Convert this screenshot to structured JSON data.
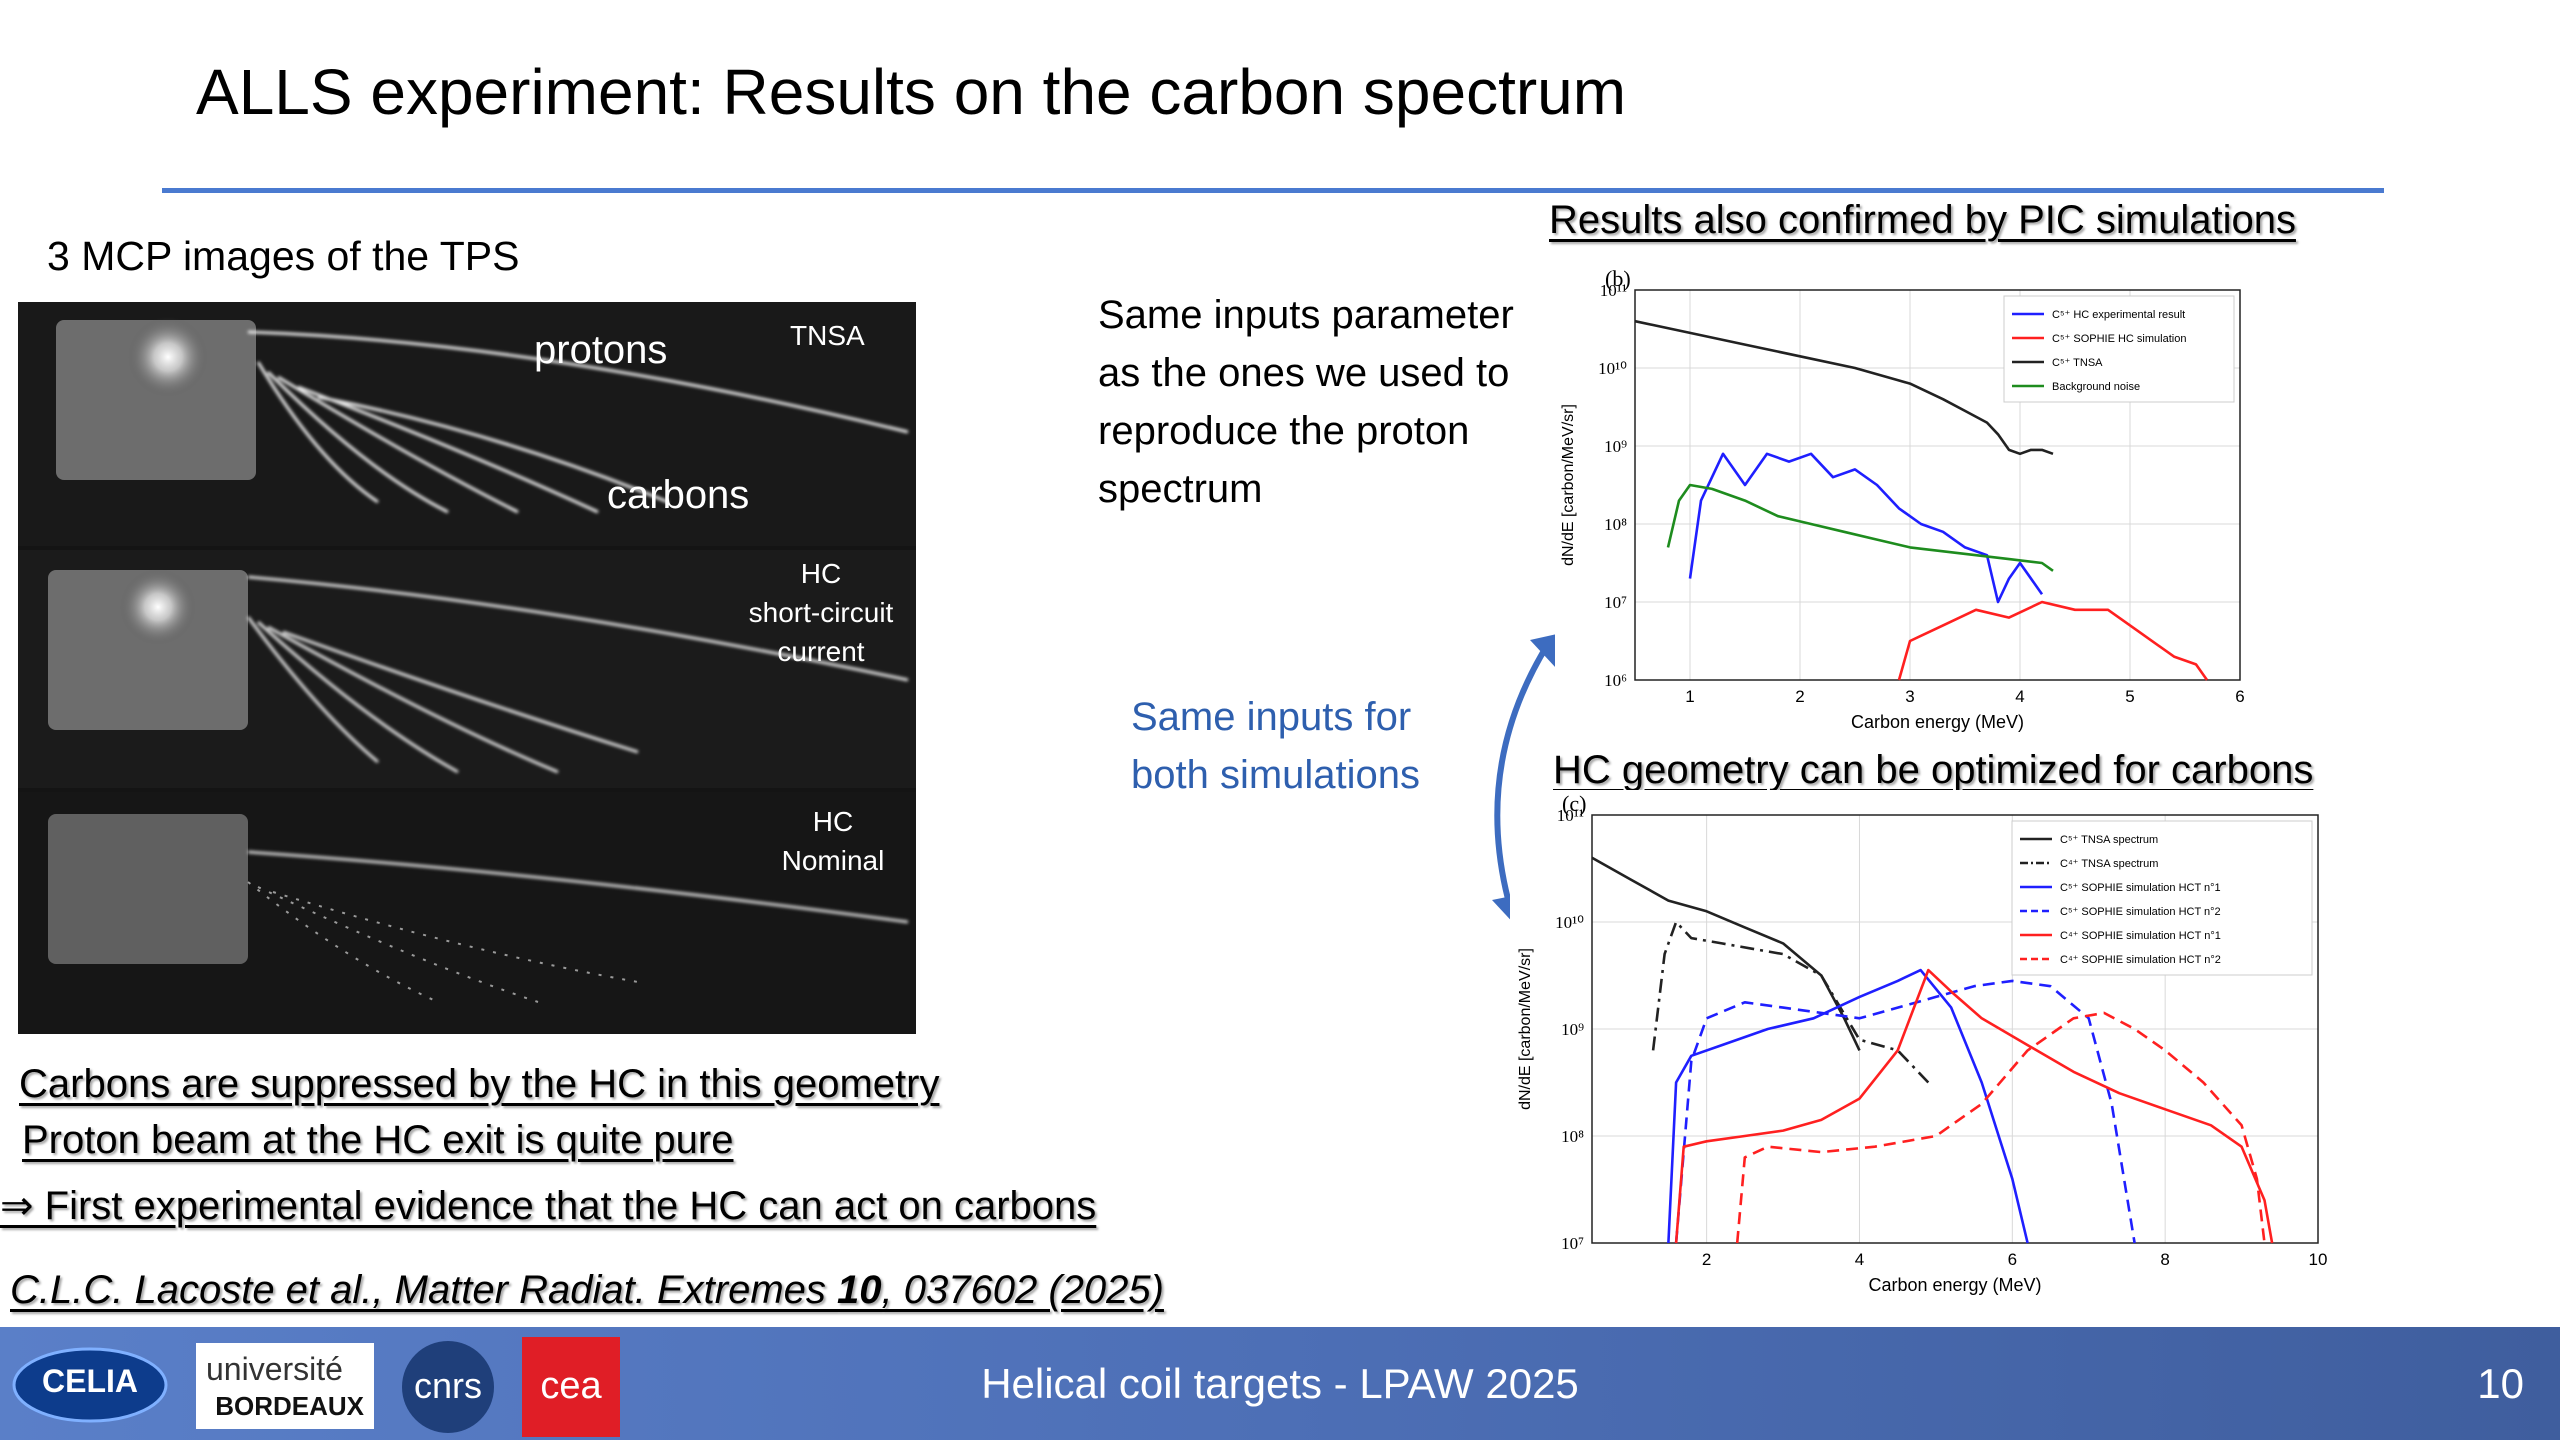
{
  "slide": {
    "title": "ALLS experiment: Results on the carbon spectrum",
    "mcp_label": "3 MCP images of the TPS",
    "mcp_overlays": {
      "protons": "protons",
      "carbons": "carbons",
      "tnsa": "TNSA",
      "hc_short_1": "HC",
      "hc_short_2": "short-circuit",
      "hc_short_3": "current",
      "hc_nom_1": "HC",
      "hc_nom_2": "Nominal"
    },
    "inputs_text": [
      "Same inputs parameter",
      "as the ones we used to",
      "reproduce the proton",
      "spectrum"
    ],
    "both_text": [
      "Same inputs for",
      "both simulations"
    ],
    "heading_pic": "Results also confirmed by PIC simulations",
    "heading_hc": "HC  geometry can be optimized for carbons",
    "conclusions": [
      "Carbons are suppressed by the HC in this geometry",
      "Proton beam at the HC exit is quite pure",
      "⇒ First experimental evidence that the HC can act on carbons"
    ],
    "citation": {
      "prefix": "C.L.C. Lacoste et al., Matter Radiat. Extremes ",
      "volume": "10",
      "suffix": ", 037602 (2025)"
    }
  },
  "footer": {
    "text": "Helical coil targets - LPAW 2025",
    "page": "10",
    "logos": {
      "celia": "CELIA",
      "ub_1": "université",
      "ub_2": "BORDEAUX",
      "cnrs": "cnrs",
      "cea": "cea"
    }
  },
  "colors": {
    "accent": "#4a7ad0",
    "footer": "#4d6fb6",
    "blue_text": "#2e5fae"
  },
  "chart_data": [
    {
      "type": "line",
      "panel": "(b)",
      "xlabel": "Carbon energy (MeV)",
      "ylabel": "dN/dE [carbon/MeV/sr]",
      "xlim": [
        0.5,
        6
      ],
      "ylim_log10": [
        6,
        11
      ],
      "xticks": [
        "1",
        "2",
        "3",
        "4",
        "5",
        "6"
      ],
      "yticks": [
        "10¹¹",
        "10¹⁰",
        "10⁹",
        "10⁸",
        "10⁷",
        "10⁶"
      ],
      "legend_position": "top-right",
      "series": [
        {
          "name": "C⁵⁺ HC experimental result",
          "color": "#1f1fff",
          "x": [
            1.0,
            1.1,
            1.3,
            1.5,
            1.7,
            1.9,
            2.1,
            2.3,
            2.5,
            2.7,
            2.9,
            3.1,
            3.3,
            3.5,
            3.7,
            3.8,
            3.9,
            4.0,
            4.2
          ],
          "y": [
            7.3,
            8.3,
            8.9,
            8.5,
            8.9,
            8.8,
            8.9,
            8.6,
            8.7,
            8.5,
            8.2,
            8.0,
            7.9,
            7.7,
            7.6,
            7.0,
            7.3,
            7.5,
            7.1
          ]
        },
        {
          "name": "C⁵⁺ SOPHIE HC simulation",
          "color": "#ff2020",
          "x": [
            2.9,
            3.0,
            3.3,
            3.6,
            3.9,
            4.2,
            4.5,
            4.8,
            5.1,
            5.4,
            5.6,
            5.7
          ],
          "y": [
            6.0,
            6.5,
            6.7,
            6.9,
            6.8,
            7.0,
            6.9,
            6.9,
            6.6,
            6.3,
            6.2,
            6.0
          ]
        },
        {
          "name": "C⁵⁺ TNSA",
          "color": "#222222",
          "x": [
            0.5,
            1.0,
            1.5,
            2.0,
            2.5,
            3.0,
            3.3,
            3.5,
            3.7,
            3.8,
            3.9,
            4.0,
            4.1,
            4.2,
            4.3
          ],
          "y": [
            10.6,
            10.45,
            10.3,
            10.15,
            10.0,
            9.8,
            9.6,
            9.45,
            9.3,
            9.15,
            8.95,
            8.9,
            8.95,
            8.95,
            8.9
          ]
        },
        {
          "name": "Background noise",
          "color": "#1e8c1e",
          "x": [
            0.8,
            0.9,
            1.0,
            1.2,
            1.5,
            1.8,
            2.1,
            2.4,
            2.7,
            3.0,
            3.3,
            3.6,
            3.9,
            4.2,
            4.3
          ],
          "y": [
            7.7,
            8.3,
            8.5,
            8.45,
            8.3,
            8.1,
            8.0,
            7.9,
            7.8,
            7.7,
            7.65,
            7.6,
            7.55,
            7.5,
            7.4
          ]
        }
      ]
    },
    {
      "type": "line",
      "panel": "(c)",
      "xlabel": "Carbon energy (MeV)",
      "ylabel": "dN/dE [carbon/MeV/sr]",
      "xlim": [
        0.5,
        10
      ],
      "ylim_log10": [
        7,
        11
      ],
      "xticks": [
        "2",
        "4",
        "6",
        "8",
        "10"
      ],
      "yticks": [
        "10¹¹",
        "10¹⁰",
        "10⁹",
        "10⁸",
        "10⁷"
      ],
      "legend_position": "top-right",
      "series": [
        {
          "name": "C⁵⁺ TNSA spectrum",
          "color": "#222222",
          "dash": "solid",
          "x": [
            0.5,
            1.0,
            1.5,
            2.0,
            2.5,
            3.0,
            3.5,
            3.8,
            4.0
          ],
          "y": [
            10.6,
            10.4,
            10.2,
            10.1,
            9.95,
            9.8,
            9.5,
            9.1,
            8.8
          ]
        },
        {
          "name": "C⁴⁺ TNSA spectrum",
          "color": "#222222",
          "dash": "dashdot",
          "x": [
            1.3,
            1.45,
            1.6,
            1.8,
            2.2,
            2.6,
            3.0,
            3.5,
            4.0,
            4.5,
            4.9
          ],
          "y": [
            8.8,
            9.7,
            10.0,
            9.85,
            9.8,
            9.75,
            9.7,
            9.5,
            8.9,
            8.8,
            8.5
          ]
        },
        {
          "name": "C⁵⁺ SOPHIE simulation HCT n°1",
          "color": "#1f1fff",
          "dash": "solid",
          "x": [
            1.5,
            1.6,
            1.8,
            2.2,
            2.8,
            3.4,
            4.0,
            4.5,
            4.8,
            5.2,
            5.6,
            6.0,
            6.2
          ],
          "y": [
            7.0,
            8.5,
            8.75,
            8.85,
            9.0,
            9.1,
            9.3,
            9.45,
            9.55,
            9.2,
            8.5,
            7.6,
            7.0
          ]
        },
        {
          "name": "C⁵⁺ SOPHIE simulation HCT n°2",
          "color": "#1f1fff",
          "dash": "dashed",
          "x": [
            1.6,
            1.8,
            2.0,
            2.5,
            3.0,
            3.5,
            4.0,
            4.5,
            5.0,
            5.5,
            6.0,
            6.5,
            7.0,
            7.3,
            7.6
          ],
          "y": [
            7.0,
            8.7,
            9.1,
            9.25,
            9.2,
            9.15,
            9.1,
            9.2,
            9.3,
            9.4,
            9.45,
            9.4,
            9.1,
            8.3,
            7.0
          ]
        },
        {
          "name": "C⁴⁺ SOPHIE simulation HCT n°1",
          "color": "#ff2020",
          "dash": "solid",
          "x": [
            1.6,
            1.7,
            2.0,
            2.5,
            3.0,
            3.5,
            4.0,
            4.5,
            4.9,
            5.2,
            5.6,
            6.2,
            6.8,
            7.4,
            8.0,
            8.6,
            9.0,
            9.3,
            9.4
          ],
          "y": [
            7.0,
            7.9,
            7.95,
            8.0,
            8.05,
            8.15,
            8.35,
            8.8,
            9.55,
            9.35,
            9.1,
            8.85,
            8.6,
            8.4,
            8.25,
            8.1,
            7.9,
            7.4,
            7.0
          ]
        },
        {
          "name": "C⁴⁺ SOPHIE simulation HCT n°2",
          "color": "#ff2020",
          "dash": "dashed",
          "x": [
            2.4,
            2.5,
            2.8,
            3.5,
            4.2,
            5.0,
            5.6,
            6.2,
            6.8,
            7.2,
            7.6,
            8.0,
            8.5,
            9.0,
            9.2,
            9.3
          ],
          "y": [
            7.0,
            7.8,
            7.9,
            7.85,
            7.9,
            8.0,
            8.3,
            8.8,
            9.1,
            9.15,
            9.0,
            8.8,
            8.5,
            8.1,
            7.6,
            7.0
          ]
        }
      ]
    }
  ]
}
